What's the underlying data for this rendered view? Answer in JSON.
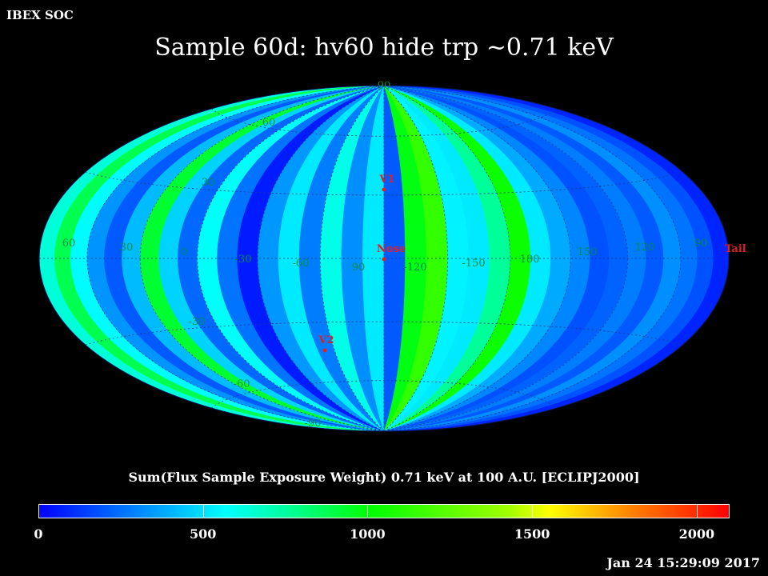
{
  "header": {
    "corner_label": "IBEX SOC",
    "title": "Sample 60d: hv60 hide trp ~0.71 keV",
    "timestamp": "Jan 24 15:29:09 2017"
  },
  "map": {
    "projection": "Hammer-Aitoff (all-sky)",
    "colors": {
      "background": "#000000",
      "grid_label": "#008B45",
      "marker": "#E02020"
    },
    "latitude_labels": [
      {
        "text": "60",
        "lat": 60
      },
      {
        "text": "30",
        "lat": 30
      },
      {
        "text": "-30",
        "lat": -30
      },
      {
        "text": "-60",
        "lat": -60
      },
      {
        "text": "90",
        "lat": 90
      },
      {
        "text": "-90",
        "lat": -90
      }
    ],
    "longitude_labels": [
      {
        "text": "60"
      },
      {
        "text": "30"
      },
      {
        "text": "0"
      },
      {
        "text": "-30"
      },
      {
        "text": "-60"
      },
      {
        "text": "90"
      },
      {
        "text": "-120"
      },
      {
        "text": "-150"
      },
      {
        "text": "180"
      },
      {
        "text": "150"
      },
      {
        "text": "120"
      },
      {
        "text": "90"
      }
    ],
    "markers": [
      {
        "name": "V1",
        "label": "V1",
        "lon": 0,
        "lat": 35
      },
      {
        "name": "Nose",
        "label": "Nose",
        "lon": 0,
        "lat": -2
      },
      {
        "name": "V2",
        "label": "V2",
        "lon": -18,
        "lat": -32
      },
      {
        "name": "Tail",
        "label": "Tail",
        "lon": 180,
        "lat": 0
      }
    ],
    "strip_profile": [
      {
        "lon": -180,
        "value": 640
      },
      {
        "lon": -170,
        "value": 880
      },
      {
        "lon": -160,
        "value": 560
      },
      {
        "lon": -150,
        "value": 330
      },
      {
        "lon": -140,
        "value": 200
      },
      {
        "lon": -130,
        "value": 420
      },
      {
        "lon": -120,
        "value": 930
      },
      {
        "lon": -110,
        "value": 470
      },
      {
        "lon": -100,
        "value": 230
      },
      {
        "lon": -90,
        "value": 580
      },
      {
        "lon": -80,
        "value": 260
      },
      {
        "lon": -70,
        "value": 60
      },
      {
        "lon": -60,
        "value": 340
      },
      {
        "lon": -50,
        "value": 520
      },
      {
        "lon": -40,
        "value": 280
      },
      {
        "lon": -30,
        "value": 610
      },
      {
        "lon": -20,
        "value": 320
      },
      {
        "lon": -10,
        "value": 520
      },
      {
        "lon": 0,
        "value": 200
      },
      {
        "lon": 10,
        "value": 980
      },
      {
        "lon": 20,
        "value": 1140
      },
      {
        "lon": 30,
        "value": 540
      },
      {
        "lon": 40,
        "value": 520
      },
      {
        "lon": 50,
        "value": 760
      },
      {
        "lon": 60,
        "value": 1040
      },
      {
        "lon": 70,
        "value": 520
      },
      {
        "lon": 80,
        "value": 380
      },
      {
        "lon": 90,
        "value": 300
      },
      {
        "lon": 100,
        "value": 180
      },
      {
        "lon": 110,
        "value": 220
      },
      {
        "lon": 120,
        "value": 280
      },
      {
        "lon": 130,
        "value": 200
      },
      {
        "lon": 140,
        "value": 320
      },
      {
        "lon": 150,
        "value": 260
      },
      {
        "lon": 160,
        "value": 180
      },
      {
        "lon": 170,
        "value": 80
      }
    ]
  },
  "colorbar": {
    "title": "Sum(Flux Sample Exposure Weight)  0.71 keV at 100 A.U. [ECLIPJ2000]",
    "min": 0,
    "max": 2100,
    "ticks": [
      {
        "value": 0,
        "label": "0"
      },
      {
        "value": 500,
        "label": "500"
      },
      {
        "value": 1000,
        "label": "1000"
      },
      {
        "value": 1500,
        "label": "1500"
      },
      {
        "value": 2000,
        "label": "2000"
      }
    ],
    "stops": [
      {
        "at": 0.0,
        "color": "#0000FF"
      },
      {
        "at": 0.22,
        "color": "#00CFFF"
      },
      {
        "at": 0.27,
        "color": "#00FFFF"
      },
      {
        "at": 0.36,
        "color": "#00FF9A"
      },
      {
        "at": 0.48,
        "color": "#00FF00"
      },
      {
        "at": 0.68,
        "color": "#A0FF00"
      },
      {
        "at": 0.74,
        "color": "#FFFF00"
      },
      {
        "at": 0.86,
        "color": "#FF8000"
      },
      {
        "at": 1.0,
        "color": "#FF0000"
      }
    ]
  }
}
